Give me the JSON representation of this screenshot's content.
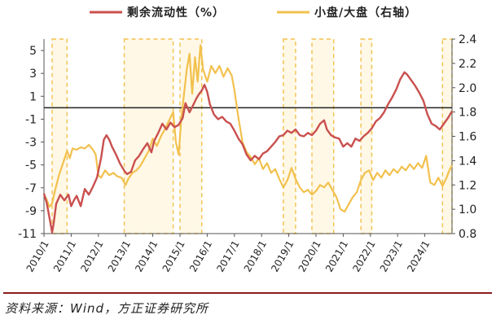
{
  "colors": {
    "liquidity": "#c9504f",
    "ratio": "#f2c14e",
    "band_fill": "#fff8e6",
    "band_stroke": "#f2c14e"
  },
  "source": "资料来源：Wind，方正证券研究所",
  "chart_data": {
    "type": "line",
    "title": "",
    "legend": [
      "剩余流动性（%）",
      "小盘/大盘（右轴）"
    ],
    "legend_position": "top",
    "left_axis": {
      "label": "剩余流动性（%）",
      "range": [
        -11,
        6
      ],
      "ticks": [
        -11,
        -9,
        -7,
        -5,
        -3,
        -1,
        1,
        3,
        5
      ]
    },
    "right_axis": {
      "label": "小盘/大盘",
      "range": [
        0.8,
        2.4
      ],
      "ticks": [
        "0.8",
        "1.0",
        "1.2",
        "1.4",
        "1.6",
        "1.8",
        "2.0",
        "2.2",
        "2.4"
      ]
    },
    "x_range": [
      2010.0,
      2025.0
    ],
    "x_ticks": [
      {
        "label": "2010/1",
        "x": 2010.0
      },
      {
        "label": "2011/1",
        "x": 2011.0
      },
      {
        "label": "2012/1",
        "x": 2012.0
      },
      {
        "label": "2013/1",
        "x": 2013.0
      },
      {
        "label": "2014/1",
        "x": 2014.0
      },
      {
        "label": "2015/1",
        "x": 2015.0
      },
      {
        "label": "2016/1",
        "x": 2016.0
      },
      {
        "label": "2017/1",
        "x": 2017.0
      },
      {
        "label": "2018/1",
        "x": 2018.0
      },
      {
        "label": "2019/1",
        "x": 2019.0
      },
      {
        "label": "2020/1",
        "x": 2020.0
      },
      {
        "label": "2021/1",
        "x": 2021.0
      },
      {
        "label": "2022/1",
        "x": 2022.0
      },
      {
        "label": "2023/1",
        "x": 2023.0
      },
      {
        "label": "2024/1",
        "x": 2024.0
      }
    ],
    "zero_line": 0,
    "shaded_periods": [
      [
        2010.3,
        2010.85
      ],
      [
        2012.95,
        2014.75
      ],
      [
        2015.0,
        2015.8
      ],
      [
        2018.8,
        2019.25
      ],
      [
        2019.85,
        2020.65
      ],
      [
        2021.65,
        2022.05
      ],
      [
        2024.65,
        2025.0
      ]
    ],
    "series": [
      {
        "name": "剩余流动性（%）",
        "axis": "left",
        "points": [
          [
            2010.0,
            -7.5
          ],
          [
            2010.1,
            -8.3
          ],
          [
            2010.2,
            -9.6
          ],
          [
            2010.3,
            -10.9
          ],
          [
            2010.35,
            -10.2
          ],
          [
            2010.45,
            -8.4
          ],
          [
            2010.6,
            -7.6
          ],
          [
            2010.75,
            -8.1
          ],
          [
            2010.9,
            -7.6
          ],
          [
            2011.0,
            -8.6
          ],
          [
            2011.1,
            -8.1
          ],
          [
            2011.2,
            -7.7
          ],
          [
            2011.35,
            -8.6
          ],
          [
            2011.5,
            -7.1
          ],
          [
            2011.65,
            -7.6
          ],
          [
            2011.8,
            -6.9
          ],
          [
            2011.95,
            -6.1
          ],
          [
            2012.1,
            -4.4
          ],
          [
            2012.2,
            -2.8
          ],
          [
            2012.3,
            -2.4
          ],
          [
            2012.4,
            -2.8
          ],
          [
            2012.5,
            -3.4
          ],
          [
            2012.65,
            -4.1
          ],
          [
            2012.8,
            -4.9
          ],
          [
            2012.95,
            -5.5
          ],
          [
            2013.05,
            -5.8
          ],
          [
            2013.2,
            -5.6
          ],
          [
            2013.35,
            -4.6
          ],
          [
            2013.5,
            -4.2
          ],
          [
            2013.65,
            -3.6
          ],
          [
            2013.8,
            -3.1
          ],
          [
            2013.95,
            -3.9
          ],
          [
            2014.05,
            -2.9
          ],
          [
            2014.2,
            -2.2
          ],
          [
            2014.35,
            -1.4
          ],
          [
            2014.5,
            -1.9
          ],
          [
            2014.65,
            -1.3
          ],
          [
            2014.8,
            -1.7
          ],
          [
            2014.95,
            -1.5
          ],
          [
            2015.1,
            -0.9
          ],
          [
            2015.2,
            0.4
          ],
          [
            2015.35,
            -0.4
          ],
          [
            2015.5,
            0.3
          ],
          [
            2015.6,
            0.8
          ],
          [
            2015.7,
            1.2
          ],
          [
            2015.8,
            1.5
          ],
          [
            2015.9,
            2.0
          ],
          [
            2016.0,
            1.4
          ],
          [
            2016.1,
            0.3
          ],
          [
            2016.25,
            -0.6
          ],
          [
            2016.4,
            -1.0
          ],
          [
            2016.55,
            -0.8
          ],
          [
            2016.7,
            -1.2
          ],
          [
            2016.85,
            -1.4
          ],
          [
            2017.0,
            -2.0
          ],
          [
            2017.15,
            -2.7
          ],
          [
            2017.3,
            -3.2
          ],
          [
            2017.45,
            -4.1
          ],
          [
            2017.6,
            -4.6
          ],
          [
            2017.75,
            -4.2
          ],
          [
            2017.9,
            -4.5
          ],
          [
            2018.05,
            -4.0
          ],
          [
            2018.2,
            -3.8
          ],
          [
            2018.35,
            -3.4
          ],
          [
            2018.5,
            -3.0
          ],
          [
            2018.65,
            -2.5
          ],
          [
            2018.8,
            -2.4
          ],
          [
            2018.95,
            -2.0
          ],
          [
            2019.1,
            -2.2
          ],
          [
            2019.25,
            -1.9
          ],
          [
            2019.4,
            -2.4
          ],
          [
            2019.55,
            -2.5
          ],
          [
            2019.7,
            -2.2
          ],
          [
            2019.85,
            -2.4
          ],
          [
            2020.0,
            -2.0
          ],
          [
            2020.15,
            -1.4
          ],
          [
            2020.3,
            -1.1
          ],
          [
            2020.4,
            -1.9
          ],
          [
            2020.55,
            -2.4
          ],
          [
            2020.7,
            -2.6
          ],
          [
            2020.85,
            -2.7
          ],
          [
            2021.0,
            -3.4
          ],
          [
            2021.15,
            -3.1
          ],
          [
            2021.3,
            -3.4
          ],
          [
            2021.45,
            -2.7
          ],
          [
            2021.6,
            -2.9
          ],
          [
            2021.75,
            -2.5
          ],
          [
            2021.9,
            -2.2
          ],
          [
            2022.05,
            -1.8
          ],
          [
            2022.2,
            -1.2
          ],
          [
            2022.35,
            -0.9
          ],
          [
            2022.5,
            -0.4
          ],
          [
            2022.65,
            0.3
          ],
          [
            2022.8,
            0.9
          ],
          [
            2022.95,
            1.6
          ],
          [
            2023.1,
            2.5
          ],
          [
            2023.25,
            3.1
          ],
          [
            2023.35,
            2.9
          ],
          [
            2023.5,
            2.4
          ],
          [
            2023.65,
            1.9
          ],
          [
            2023.8,
            1.3
          ],
          [
            2023.95,
            0.6
          ],
          [
            2024.1,
            -0.6
          ],
          [
            2024.25,
            -1.4
          ],
          [
            2024.4,
            -1.6
          ],
          [
            2024.55,
            -1.9
          ],
          [
            2024.7,
            -1.4
          ],
          [
            2024.85,
            -0.9
          ],
          [
            2025.0,
            -0.3
          ]
        ]
      },
      {
        "name": "小盘/大盘（右轴）",
        "axis": "right",
        "points": [
          [
            2010.0,
            1.12
          ],
          [
            2010.1,
            1.08
          ],
          [
            2010.2,
            1.02
          ],
          [
            2010.3,
            1.05
          ],
          [
            2010.4,
            1.15
          ],
          [
            2010.55,
            1.28
          ],
          [
            2010.7,
            1.38
          ],
          [
            2010.85,
            1.48
          ],
          [
            2010.95,
            1.42
          ],
          [
            2011.05,
            1.5
          ],
          [
            2011.2,
            1.49
          ],
          [
            2011.35,
            1.51
          ],
          [
            2011.5,
            1.5
          ],
          [
            2011.65,
            1.53
          ],
          [
            2011.8,
            1.49
          ],
          [
            2011.9,
            1.45
          ],
          [
            2012.0,
            1.28
          ],
          [
            2012.1,
            1.26
          ],
          [
            2012.25,
            1.32
          ],
          [
            2012.4,
            1.28
          ],
          [
            2012.55,
            1.3
          ],
          [
            2012.7,
            1.27
          ],
          [
            2012.85,
            1.26
          ],
          [
            2013.0,
            1.2
          ],
          [
            2013.1,
            1.25
          ],
          [
            2013.25,
            1.3
          ],
          [
            2013.4,
            1.32
          ],
          [
            2013.55,
            1.36
          ],
          [
            2013.7,
            1.42
          ],
          [
            2013.85,
            1.48
          ],
          [
            2014.0,
            1.58
          ],
          [
            2014.15,
            1.52
          ],
          [
            2014.3,
            1.6
          ],
          [
            2014.45,
            1.66
          ],
          [
            2014.6,
            1.73
          ],
          [
            2014.75,
            1.8
          ],
          [
            2014.85,
            1.55
          ],
          [
            2014.95,
            1.45
          ],
          [
            2015.05,
            1.75
          ],
          [
            2015.15,
            1.95
          ],
          [
            2015.25,
            2.15
          ],
          [
            2015.35,
            2.28
          ],
          [
            2015.45,
            1.95
          ],
          [
            2015.55,
            2.25
          ],
          [
            2015.65,
            2.05
          ],
          [
            2015.75,
            2.35
          ],
          [
            2015.85,
            2.15
          ],
          [
            2016.0,
            2.05
          ],
          [
            2016.15,
            2.18
          ],
          [
            2016.3,
            2.12
          ],
          [
            2016.45,
            2.18
          ],
          [
            2016.6,
            2.09
          ],
          [
            2016.75,
            2.16
          ],
          [
            2016.9,
            2.1
          ],
          [
            2017.0,
            1.98
          ],
          [
            2017.15,
            1.75
          ],
          [
            2017.3,
            1.55
          ],
          [
            2017.45,
            1.47
          ],
          [
            2017.6,
            1.43
          ],
          [
            2017.75,
            1.37
          ],
          [
            2017.9,
            1.42
          ],
          [
            2018.05,
            1.33
          ],
          [
            2018.2,
            1.38
          ],
          [
            2018.35,
            1.3
          ],
          [
            2018.5,
            1.33
          ],
          [
            2018.65,
            1.25
          ],
          [
            2018.8,
            1.18
          ],
          [
            2018.95,
            1.24
          ],
          [
            2019.1,
            1.34
          ],
          [
            2019.25,
            1.25
          ],
          [
            2019.4,
            1.18
          ],
          [
            2019.55,
            1.14
          ],
          [
            2019.7,
            1.16
          ],
          [
            2019.85,
            1.12
          ],
          [
            2020.0,
            1.15
          ],
          [
            2020.15,
            1.2
          ],
          [
            2020.3,
            1.18
          ],
          [
            2020.45,
            1.22
          ],
          [
            2020.6,
            1.16
          ],
          [
            2020.75,
            1.1
          ],
          [
            2020.9,
            1.0
          ],
          [
            2021.05,
            0.98
          ],
          [
            2021.2,
            1.04
          ],
          [
            2021.35,
            1.1
          ],
          [
            2021.5,
            1.14
          ],
          [
            2021.65,
            1.24
          ],
          [
            2021.8,
            1.3
          ],
          [
            2021.95,
            1.32
          ],
          [
            2022.1,
            1.24
          ],
          [
            2022.25,
            1.3
          ],
          [
            2022.4,
            1.26
          ],
          [
            2022.55,
            1.32
          ],
          [
            2022.7,
            1.28
          ],
          [
            2022.85,
            1.33
          ],
          [
            2023.0,
            1.3
          ],
          [
            2023.15,
            1.35
          ],
          [
            2023.3,
            1.32
          ],
          [
            2023.45,
            1.37
          ],
          [
            2023.6,
            1.33
          ],
          [
            2023.75,
            1.38
          ],
          [
            2023.9,
            1.34
          ],
          [
            2024.05,
            1.44
          ],
          [
            2024.2,
            1.22
          ],
          [
            2024.35,
            1.2
          ],
          [
            2024.5,
            1.26
          ],
          [
            2024.65,
            1.19
          ],
          [
            2024.8,
            1.26
          ],
          [
            2024.9,
            1.32
          ],
          [
            2025.0,
            1.36
          ]
        ]
      }
    ]
  }
}
